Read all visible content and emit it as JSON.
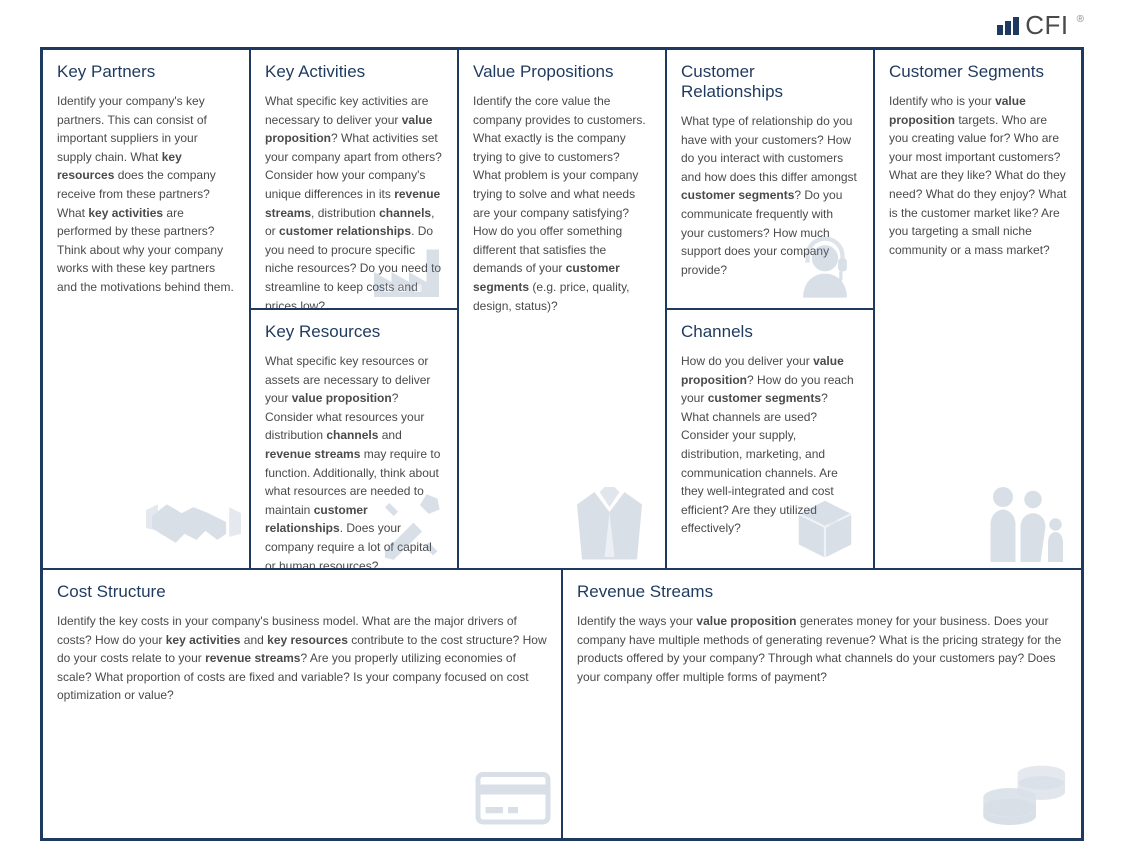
{
  "brand": {
    "bars_color": "#1f3a5f",
    "name": "CFI",
    "trademark": "®"
  },
  "layout": {
    "border_color": "#1f3a5f",
    "title_color": "#1f3a5f",
    "body_color": "#4a4a4a",
    "body_fontsize": 12,
    "title_fontsize": 17,
    "icon_color": "#6b84a3",
    "background": "#ffffff"
  },
  "cells": {
    "key_partners": {
      "title": "Key Partners",
      "body": "Identify your company's key partners. This can consist of important suppliers in your supply chain. What <b>key resources</b> does the company receive from these partners? What <b>key activities</b> are performed by these partners? Think about why your company works with these key partners and the motivations behind them.",
      "icon": "handshake"
    },
    "key_activities": {
      "title": "Key Activities",
      "body": "What specific key activities are necessary to deliver your <b>value proposition</b>? What activities set your company apart from others? Consider how your company's unique differences in its <b>revenue streams</b>, distribution <b>channels</b>, or <b>customer relationships</b>. Do you need to procure specific niche resources? Do you need to streamline to keep costs and prices low?",
      "icon": "factory"
    },
    "key_resources": {
      "title": "Key Resources",
      "body": "What specific key resources or assets are necessary to deliver your <b>value proposition</b>? Consider what resources your distribution <b>channels</b> and <b>revenue streams</b> may require to function. Additionally, think about what resources are needed to maintain <b>customer relationships</b>. Does your company require a lot of capital or human resources?",
      "icon": "tools"
    },
    "value_proposition": {
      "title": "Value Propositions",
      "body": "Identify the core value the company provides to customers. What exactly is the company trying to give to customers? What problem is your company trying to solve and what needs are your company satisfying? How do you offer something different that satisfies the demands of your <b>customer segments</b> (e.g. price, quality, design, status)?",
      "icon": "jacket"
    },
    "customer_relationships": {
      "title": "Customer Relationships",
      "body": "What type of relationship do you have with your customers? How do you interact with customers and how does this differ amongst <b>customer segments</b>? Do you communicate frequently with your customers? How much support does your company provide?",
      "icon": "headset"
    },
    "channels": {
      "title": "Channels",
      "body": "How do you deliver your <b>value proposition</b>? How do you reach your <b>customer segments</b>? What channels are used? Consider your supply, distribution, marketing, and communication channels. Are they well-integrated and cost efficient? Are they utilized effectively?",
      "icon": "box"
    },
    "customer_segments": {
      "title": "Customer Segments",
      "body": "Identify who is your <b>value proposition</b> targets. Who are you creating value for? Who are your most important customers? What are they like? What do they need? What do they enjoy? What is the customer market like? Are you targeting a small niche community or a mass market?",
      "icon": "family"
    },
    "cost_structure": {
      "title": "Cost Structure",
      "body": "Identify the key costs in your company's business model. What are the major drivers of costs? How do your <b>key activities</b> and <b>key resources</b> contribute to the cost structure? How do your costs relate to your <b>revenue streams</b>? Are you properly utilizing economies of scale? What proportion of costs are fixed and variable? Is your company focused on cost optimization or value?",
      "icon": "card"
    },
    "revenue_streams": {
      "title": "Revenue Streams",
      "body": "Identify the ways your <b>value proposition</b> generates money for your business. Does your company have multiple methods of generating revenue? What is the pricing strategy for the products offered by your company? Through what channels do your customers pay? Does your company offer multiple forms of payment?",
      "icon": "coins"
    }
  }
}
